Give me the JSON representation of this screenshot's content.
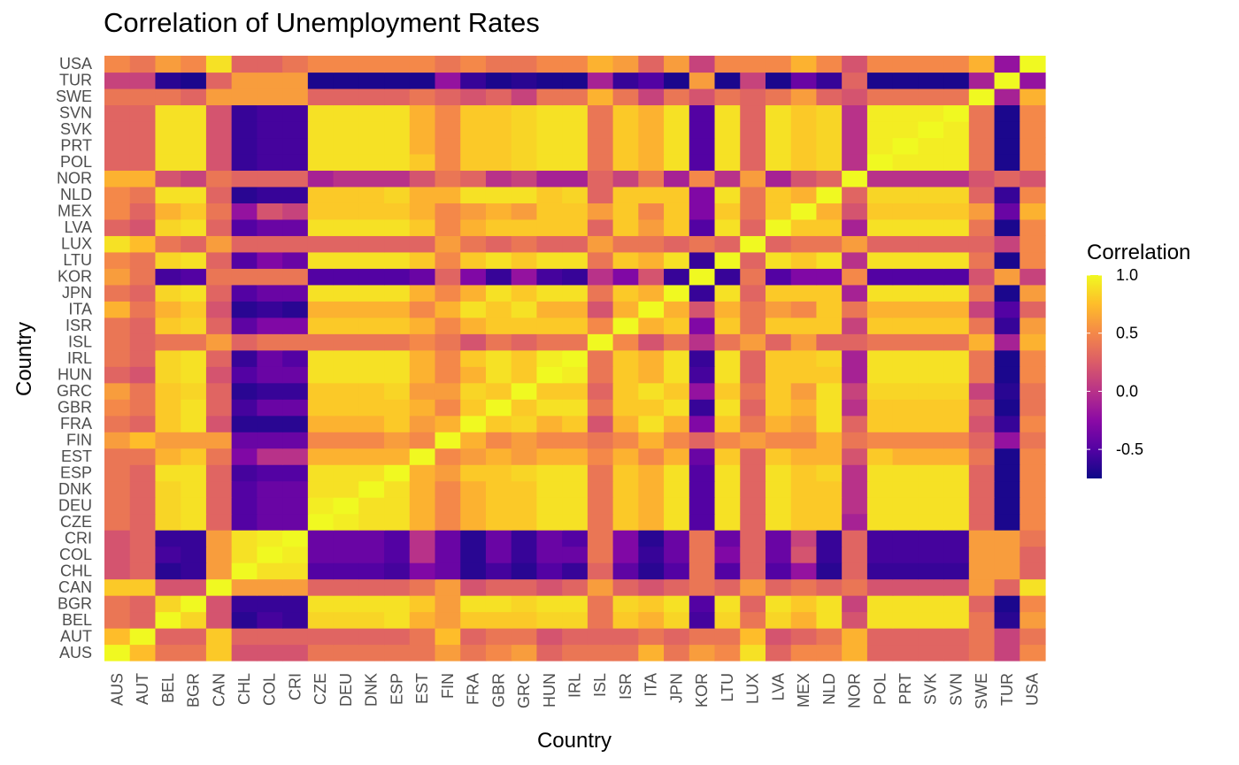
{
  "chart_data": {
    "type": "heatmap",
    "title": "Correlation of Unemployment Rates",
    "xlabel": "Country",
    "ylabel": "Country",
    "countries": [
      "AUS",
      "AUT",
      "BEL",
      "BGR",
      "CAN",
      "CHL",
      "COL",
      "CRI",
      "CZE",
      "DEU",
      "DNK",
      "ESP",
      "EST",
      "FIN",
      "FRA",
      "GBR",
      "GRC",
      "HUN",
      "IRL",
      "ISL",
      "ISR",
      "ITA",
      "JPN",
      "KOR",
      "LTU",
      "LUX",
      "LVA",
      "MEX",
      "NLD",
      "NOR",
      "POL",
      "PRT",
      "SVK",
      "SVN",
      "SWE",
      "TUR",
      "USA"
    ],
    "values": [
      [
        1.0,
        0.75,
        0.4,
        0.4,
        0.8,
        0.2,
        0.2,
        0.2,
        0.4,
        0.4,
        0.4,
        0.4,
        0.4,
        0.6,
        0.4,
        0.5,
        0.6,
        0.3,
        0.4,
        0.4,
        0.4,
        0.7,
        0.4,
        0.6,
        0.5,
        0.9,
        0.3,
        0.5,
        0.5,
        0.7,
        0.3,
        0.3,
        0.3,
        0.3,
        0.4,
        0.1,
        0.5
      ],
      [
        0.75,
        1.0,
        0.3,
        0.3,
        0.8,
        0.3,
        0.3,
        0.3,
        0.3,
        0.3,
        0.3,
        0.3,
        0.4,
        0.75,
        0.3,
        0.4,
        0.4,
        0.2,
        0.3,
        0.3,
        0.3,
        0.4,
        0.3,
        0.4,
        0.4,
        0.75,
        0.2,
        0.3,
        0.4,
        0.7,
        0.3,
        0.3,
        0.3,
        0.3,
        0.4,
        0.1,
        0.4
      ],
      [
        0.4,
        0.3,
        1.0,
        0.85,
        0.2,
        -0.65,
        -0.55,
        -0.6,
        0.85,
        0.85,
        0.85,
        0.9,
        0.7,
        0.6,
        0.8,
        0.8,
        0.8,
        0.85,
        0.85,
        0.4,
        0.8,
        0.7,
        0.85,
        -0.55,
        0.85,
        0.4,
        0.85,
        0.7,
        0.9,
        0.2,
        0.9,
        0.9,
        0.9,
        0.9,
        0.4,
        -0.65,
        0.6
      ],
      [
        0.4,
        0.3,
        0.85,
        1.0,
        0.2,
        -0.6,
        -0.6,
        -0.6,
        0.9,
        0.9,
        0.9,
        0.9,
        0.8,
        0.6,
        0.9,
        0.9,
        0.85,
        0.9,
        0.9,
        0.4,
        0.85,
        0.8,
        0.9,
        -0.5,
        0.9,
        0.3,
        0.9,
        0.8,
        0.9,
        0.1,
        0.9,
        0.9,
        0.9,
        0.9,
        0.3,
        -0.7,
        0.5
      ],
      [
        0.8,
        0.8,
        0.2,
        0.2,
        1.0,
        0.6,
        0.6,
        0.6,
        0.3,
        0.3,
        0.3,
        0.3,
        0.4,
        0.6,
        0.2,
        0.3,
        0.3,
        0.2,
        0.3,
        0.6,
        0.3,
        0.2,
        0.3,
        0.4,
        0.3,
        0.6,
        0.3,
        0.4,
        0.3,
        0.4,
        0.2,
        0.2,
        0.2,
        0.2,
        0.6,
        0.3,
        0.9
      ],
      [
        0.2,
        0.3,
        -0.65,
        -0.6,
        0.6,
        1.0,
        0.9,
        0.9,
        -0.5,
        -0.5,
        -0.5,
        -0.55,
        -0.3,
        -0.4,
        -0.65,
        -0.55,
        -0.65,
        -0.5,
        -0.6,
        0.3,
        -0.45,
        -0.65,
        -0.5,
        0.4,
        -0.5,
        0.3,
        -0.5,
        -0.2,
        -0.65,
        0.3,
        -0.6,
        -0.6,
        -0.6,
        -0.6,
        0.6,
        0.6,
        0.3
      ],
      [
        0.2,
        0.3,
        -0.55,
        -0.6,
        0.6,
        0.9,
        1.0,
        0.95,
        -0.4,
        -0.4,
        -0.4,
        -0.5,
        0.0,
        -0.4,
        -0.65,
        -0.4,
        -0.6,
        -0.4,
        -0.4,
        0.4,
        -0.3,
        -0.6,
        -0.4,
        0.4,
        -0.3,
        0.3,
        -0.4,
        0.2,
        -0.6,
        0.3,
        -0.55,
        -0.55,
        -0.55,
        -0.55,
        0.6,
        0.6,
        0.3
      ],
      [
        0.2,
        0.3,
        -0.6,
        -0.6,
        0.6,
        0.9,
        0.95,
        1.0,
        -0.4,
        -0.4,
        -0.4,
        -0.5,
        0.0,
        -0.4,
        -0.65,
        -0.4,
        -0.6,
        -0.4,
        -0.5,
        0.4,
        -0.3,
        -0.65,
        -0.4,
        0.4,
        -0.4,
        0.3,
        -0.4,
        0.1,
        -0.6,
        0.3,
        -0.55,
        -0.55,
        -0.55,
        -0.55,
        0.6,
        0.6,
        0.4
      ],
      [
        0.4,
        0.3,
        0.85,
        0.9,
        0.3,
        -0.5,
        -0.4,
        -0.4,
        1.0,
        0.95,
        0.9,
        0.9,
        0.7,
        0.5,
        0.7,
        0.8,
        0.8,
        0.9,
        0.9,
        0.4,
        0.8,
        0.7,
        0.9,
        -0.5,
        0.9,
        0.3,
        0.9,
        0.8,
        0.8,
        -0.1,
        0.9,
        0.9,
        0.9,
        0.9,
        0.3,
        -0.7,
        0.5
      ],
      [
        0.4,
        0.3,
        0.85,
        0.9,
        0.3,
        -0.5,
        -0.4,
        -0.4,
        0.95,
        1.0,
        0.9,
        0.9,
        0.7,
        0.5,
        0.7,
        0.8,
        0.8,
        0.9,
        0.9,
        0.4,
        0.8,
        0.7,
        0.9,
        -0.5,
        0.9,
        0.3,
        0.9,
        0.8,
        0.8,
        0.0,
        0.9,
        0.9,
        0.9,
        0.9,
        0.3,
        -0.7,
        0.5
      ],
      [
        0.4,
        0.3,
        0.85,
        0.9,
        0.3,
        -0.5,
        -0.4,
        -0.4,
        0.9,
        0.9,
        1.0,
        0.9,
        0.7,
        0.5,
        0.7,
        0.8,
        0.8,
        0.9,
        0.9,
        0.4,
        0.8,
        0.7,
        0.9,
        -0.5,
        0.9,
        0.3,
        0.9,
        0.8,
        0.8,
        0.0,
        0.9,
        0.9,
        0.9,
        0.9,
        0.3,
        -0.7,
        0.5
      ],
      [
        0.4,
        0.3,
        0.9,
        0.9,
        0.3,
        -0.55,
        -0.5,
        -0.5,
        0.9,
        0.9,
        0.9,
        1.0,
        0.7,
        0.6,
        0.8,
        0.8,
        0.85,
        0.9,
        0.9,
        0.4,
        0.8,
        0.7,
        0.9,
        -0.5,
        0.9,
        0.3,
        0.9,
        0.8,
        0.85,
        0.0,
        0.9,
        0.9,
        0.9,
        0.9,
        0.3,
        -0.7,
        0.5
      ],
      [
        0.4,
        0.4,
        0.7,
        0.8,
        0.4,
        -0.3,
        0.0,
        0.0,
        0.7,
        0.7,
        0.7,
        0.7,
        1.0,
        0.5,
        0.6,
        0.7,
        0.6,
        0.7,
        0.7,
        0.5,
        0.7,
        0.5,
        0.7,
        -0.4,
        0.8,
        0.3,
        0.8,
        0.7,
        0.7,
        0.2,
        0.8,
        0.7,
        0.7,
        0.7,
        0.4,
        -0.7,
        0.5
      ],
      [
        0.6,
        0.75,
        0.6,
        0.6,
        0.6,
        -0.4,
        -0.4,
        -0.4,
        0.5,
        0.5,
        0.5,
        0.6,
        0.5,
        1.0,
        0.7,
        0.5,
        0.6,
        0.5,
        0.5,
        0.4,
        0.5,
        0.7,
        0.5,
        0.3,
        0.5,
        0.6,
        0.5,
        0.5,
        0.7,
        0.4,
        0.5,
        0.5,
        0.5,
        0.5,
        0.3,
        -0.2,
        0.4
      ],
      [
        0.4,
        0.3,
        0.8,
        0.9,
        0.2,
        -0.65,
        -0.65,
        -0.65,
        0.7,
        0.7,
        0.7,
        0.8,
        0.6,
        0.7,
        1.0,
        0.8,
        0.85,
        0.7,
        0.8,
        0.2,
        0.7,
        0.9,
        0.7,
        -0.3,
        0.8,
        0.4,
        0.7,
        0.6,
        0.9,
        0.3,
        0.8,
        0.8,
        0.8,
        0.8,
        0.2,
        -0.6,
        0.5
      ],
      [
        0.5,
        0.4,
        0.8,
        0.9,
        0.3,
        -0.55,
        -0.4,
        -0.4,
        0.8,
        0.8,
        0.8,
        0.8,
        0.7,
        0.5,
        0.8,
        1.0,
        0.8,
        0.9,
        0.9,
        0.4,
        0.8,
        0.8,
        0.9,
        -0.6,
        0.9,
        0.3,
        0.8,
        0.7,
        0.9,
        0.0,
        0.8,
        0.8,
        0.8,
        0.8,
        0.3,
        -0.7,
        0.4
      ],
      [
        0.6,
        0.4,
        0.8,
        0.85,
        0.3,
        -0.65,
        -0.6,
        -0.6,
        0.8,
        0.8,
        0.8,
        0.85,
        0.6,
        0.6,
        0.85,
        0.8,
        1.0,
        0.8,
        0.8,
        0.3,
        0.8,
        0.9,
        0.8,
        -0.2,
        0.8,
        0.4,
        0.8,
        0.6,
        0.9,
        0.1,
        0.85,
        0.85,
        0.85,
        0.85,
        0.1,
        -0.65,
        0.4
      ],
      [
        0.3,
        0.2,
        0.85,
        0.9,
        0.2,
        -0.5,
        -0.4,
        -0.4,
        0.9,
        0.9,
        0.9,
        0.9,
        0.7,
        0.5,
        0.7,
        0.9,
        0.8,
        1.0,
        0.95,
        0.4,
        0.8,
        0.7,
        0.9,
        -0.55,
        0.9,
        0.3,
        0.8,
        0.8,
        0.8,
        -0.1,
        0.9,
        0.9,
        0.9,
        0.9,
        0.4,
        -0.7,
        0.5
      ],
      [
        0.4,
        0.3,
        0.85,
        0.9,
        0.3,
        -0.6,
        -0.4,
        -0.5,
        0.9,
        0.9,
        0.9,
        0.9,
        0.7,
        0.5,
        0.8,
        0.9,
        0.8,
        0.95,
        1.0,
        0.4,
        0.8,
        0.7,
        0.9,
        -0.6,
        0.9,
        0.3,
        0.8,
        0.8,
        0.85,
        -0.1,
        0.9,
        0.9,
        0.9,
        0.9,
        0.4,
        -0.7,
        0.5
      ],
      [
        0.4,
        0.3,
        0.4,
        0.4,
        0.6,
        0.3,
        0.4,
        0.4,
        0.4,
        0.4,
        0.4,
        0.4,
        0.5,
        0.4,
        0.2,
        0.4,
        0.3,
        0.4,
        0.4,
        1.0,
        0.5,
        0.2,
        0.4,
        0.0,
        0.4,
        0.6,
        0.3,
        0.6,
        0.3,
        0.3,
        0.4,
        0.4,
        0.4,
        0.4,
        0.7,
        -0.1,
        0.7
      ],
      [
        0.4,
        0.3,
        0.8,
        0.85,
        0.3,
        -0.45,
        -0.3,
        -0.3,
        0.8,
        0.8,
        0.8,
        0.8,
        0.7,
        0.5,
        0.7,
        0.8,
        0.8,
        0.8,
        0.8,
        0.5,
        1.0,
        0.7,
        0.8,
        -0.3,
        0.8,
        0.4,
        0.8,
        0.8,
        0.8,
        0.1,
        0.8,
        0.8,
        0.8,
        0.8,
        0.4,
        -0.6,
        0.6
      ],
      [
        0.7,
        0.4,
        0.7,
        0.8,
        0.2,
        -0.65,
        -0.6,
        -0.65,
        0.7,
        0.7,
        0.7,
        0.7,
        0.5,
        0.7,
        0.9,
        0.8,
        0.9,
        0.7,
        0.7,
        0.2,
        0.7,
        1.0,
        0.7,
        0.2,
        0.7,
        0.4,
        0.6,
        0.5,
        0.8,
        0.4,
        0.7,
        0.7,
        0.7,
        0.7,
        0.1,
        -0.5,
        0.3
      ],
      [
        0.4,
        0.3,
        0.85,
        0.9,
        0.3,
        -0.5,
        -0.4,
        -0.4,
        0.9,
        0.9,
        0.9,
        0.9,
        0.7,
        0.5,
        0.7,
        0.9,
        0.8,
        0.9,
        0.9,
        0.4,
        0.8,
        0.7,
        1.0,
        -0.6,
        0.9,
        0.3,
        0.8,
        0.8,
        0.8,
        -0.1,
        0.9,
        0.9,
        0.9,
        0.9,
        0.4,
        -0.7,
        0.6
      ],
      [
        0.6,
        0.4,
        -0.55,
        -0.5,
        0.4,
        0.4,
        0.4,
        0.4,
        -0.5,
        -0.5,
        -0.5,
        -0.5,
        -0.4,
        0.3,
        -0.3,
        -0.6,
        -0.2,
        -0.55,
        -0.6,
        0.0,
        -0.3,
        0.2,
        -0.6,
        1.0,
        -0.6,
        0.4,
        -0.5,
        -0.3,
        -0.3,
        0.5,
        -0.5,
        -0.5,
        -0.5,
        -0.5,
        0.2,
        0.6,
        0.1
      ],
      [
        0.5,
        0.4,
        0.85,
        0.9,
        0.3,
        -0.5,
        -0.3,
        -0.4,
        0.9,
        0.9,
        0.9,
        0.9,
        0.8,
        0.5,
        0.8,
        0.9,
        0.8,
        0.9,
        0.9,
        0.4,
        0.8,
        0.7,
        0.9,
        -0.6,
        1.0,
        0.3,
        0.9,
        0.8,
        0.9,
        0.0,
        0.9,
        0.9,
        0.9,
        0.9,
        0.4,
        -0.7,
        0.5
      ],
      [
        0.9,
        0.75,
        0.4,
        0.3,
        0.6,
        0.3,
        0.3,
        0.3,
        0.3,
        0.3,
        0.3,
        0.3,
        0.3,
        0.6,
        0.4,
        0.3,
        0.4,
        0.3,
        0.3,
        0.6,
        0.4,
        0.4,
        0.3,
        0.4,
        0.3,
        1.0,
        0.3,
        0.4,
        0.4,
        0.6,
        0.3,
        0.3,
        0.3,
        0.3,
        0.3,
        0.1,
        0.5
      ],
      [
        0.3,
        0.2,
        0.85,
        0.9,
        0.3,
        -0.5,
        -0.4,
        -0.4,
        0.9,
        0.9,
        0.9,
        0.9,
        0.8,
        0.5,
        0.7,
        0.8,
        0.8,
        0.8,
        0.8,
        0.3,
        0.8,
        0.6,
        0.8,
        -0.5,
        0.9,
        0.3,
        1.0,
        0.8,
        0.8,
        -0.1,
        0.9,
        0.9,
        0.9,
        0.9,
        0.4,
        -0.7,
        0.5
      ],
      [
        0.5,
        0.3,
        0.7,
        0.8,
        0.4,
        -0.2,
        0.2,
        0.1,
        0.8,
        0.8,
        0.8,
        0.8,
        0.7,
        0.5,
        0.6,
        0.7,
        0.6,
        0.8,
        0.8,
        0.6,
        0.8,
        0.5,
        0.8,
        -0.3,
        0.8,
        0.4,
        0.8,
        1.0,
        0.7,
        0.2,
        0.8,
        0.8,
        0.8,
        0.8,
        0.6,
        -0.4,
        0.7
      ],
      [
        0.5,
        0.4,
        0.9,
        0.9,
        0.3,
        -0.65,
        -0.6,
        -0.6,
        0.8,
        0.8,
        0.8,
        0.85,
        0.7,
        0.7,
        0.9,
        0.9,
        0.9,
        0.8,
        0.85,
        0.3,
        0.8,
        0.8,
        0.8,
        -0.3,
        0.9,
        0.4,
        0.8,
        0.7,
        1.0,
        0.3,
        0.85,
        0.85,
        0.85,
        0.85,
        0.3,
        -0.6,
        0.5
      ],
      [
        0.7,
        0.7,
        0.2,
        0.1,
        0.4,
        0.3,
        0.3,
        0.3,
        -0.1,
        0.0,
        0.0,
        0.0,
        0.2,
        0.4,
        0.3,
        0.0,
        0.1,
        -0.1,
        -0.1,
        0.3,
        0.1,
        0.4,
        -0.1,
        0.5,
        0.0,
        0.6,
        -0.1,
        0.2,
        0.3,
        1.0,
        0.0,
        0.0,
        0.0,
        0.0,
        0.2,
        0.3,
        0.2
      ],
      [
        0.3,
        0.3,
        0.9,
        0.9,
        0.2,
        -0.6,
        -0.55,
        -0.55,
        0.9,
        0.9,
        0.9,
        0.9,
        0.8,
        0.5,
        0.8,
        0.8,
        0.85,
        0.9,
        0.9,
        0.4,
        0.8,
        0.7,
        0.9,
        -0.5,
        0.9,
        0.3,
        0.9,
        0.8,
        0.85,
        0.0,
        1.0,
        0.95,
        0.95,
        0.95,
        0.4,
        -0.7,
        0.5
      ],
      [
        0.3,
        0.3,
        0.9,
        0.9,
        0.2,
        -0.6,
        -0.55,
        -0.55,
        0.9,
        0.9,
        0.9,
        0.9,
        0.7,
        0.5,
        0.8,
        0.8,
        0.85,
        0.9,
        0.9,
        0.4,
        0.8,
        0.7,
        0.9,
        -0.5,
        0.9,
        0.3,
        0.9,
        0.8,
        0.85,
        0.0,
        0.95,
        1.0,
        0.95,
        0.95,
        0.4,
        -0.7,
        0.5
      ],
      [
        0.3,
        0.3,
        0.9,
        0.9,
        0.2,
        -0.6,
        -0.55,
        -0.55,
        0.9,
        0.9,
        0.9,
        0.9,
        0.7,
        0.5,
        0.8,
        0.8,
        0.85,
        0.9,
        0.9,
        0.4,
        0.8,
        0.7,
        0.9,
        -0.5,
        0.9,
        0.3,
        0.9,
        0.8,
        0.85,
        0.0,
        0.95,
        0.95,
        1.0,
        0.95,
        0.4,
        -0.7,
        0.5
      ],
      [
        0.3,
        0.3,
        0.9,
        0.9,
        0.2,
        -0.6,
        -0.55,
        -0.55,
        0.9,
        0.9,
        0.9,
        0.9,
        0.7,
        0.5,
        0.8,
        0.8,
        0.85,
        0.9,
        0.9,
        0.4,
        0.8,
        0.7,
        0.9,
        -0.5,
        0.9,
        0.3,
        0.9,
        0.8,
        0.85,
        0.0,
        0.95,
        0.95,
        0.95,
        1.0,
        0.4,
        -0.7,
        0.5
      ],
      [
        0.4,
        0.4,
        0.4,
        0.3,
        0.6,
        0.6,
        0.6,
        0.6,
        0.3,
        0.3,
        0.3,
        0.3,
        0.4,
        0.3,
        0.2,
        0.3,
        0.1,
        0.4,
        0.4,
        0.7,
        0.4,
        0.1,
        0.4,
        0.2,
        0.4,
        0.3,
        0.4,
        0.6,
        0.3,
        0.2,
        0.4,
        0.4,
        0.4,
        0.4,
        1.0,
        -0.1,
        0.7
      ],
      [
        0.1,
        0.1,
        -0.65,
        -0.7,
        0.3,
        0.6,
        0.6,
        0.6,
        -0.7,
        -0.7,
        -0.7,
        -0.7,
        -0.7,
        -0.2,
        -0.6,
        -0.7,
        -0.65,
        -0.7,
        -0.7,
        -0.1,
        -0.6,
        -0.5,
        -0.7,
        0.6,
        -0.7,
        0.1,
        -0.7,
        -0.4,
        -0.6,
        0.3,
        -0.7,
        -0.7,
        -0.7,
        -0.7,
        -0.1,
        1.0,
        -0.2
      ],
      [
        0.5,
        0.4,
        0.6,
        0.5,
        0.9,
        0.3,
        0.3,
        0.4,
        0.5,
        0.5,
        0.5,
        0.5,
        0.5,
        0.4,
        0.5,
        0.4,
        0.4,
        0.5,
        0.5,
        0.7,
        0.6,
        0.3,
        0.6,
        0.1,
        0.5,
        0.5,
        0.5,
        0.7,
        0.5,
        0.2,
        0.5,
        0.5,
        0.5,
        0.5,
        0.7,
        -0.2,
        1.0
      ]
    ],
    "legend": {
      "title": "Correlation",
      "ticks": [
        "1.0",
        "0.5",
        "0.0",
        "-0.5"
      ],
      "tick_values": [
        1.0,
        0.5,
        0.0,
        -0.5
      ],
      "range": [
        -0.75,
        1.0
      ],
      "placement": "right"
    },
    "colormap": "plasma",
    "grid": false
  }
}
